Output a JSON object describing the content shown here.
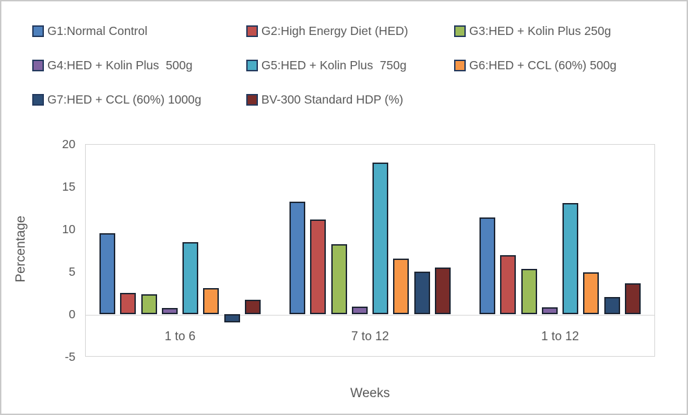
{
  "chart_data": {
    "type": "bar",
    "title": "",
    "xlabel": "Weeks",
    "ylabel": "Percentage",
    "categories": [
      "1 to 6",
      "7 to 12",
      "1 to 12"
    ],
    "series": [
      {
        "name": "G1:Normal Control",
        "color": "#4F81BD",
        "values": [
          9.5,
          13.2,
          11.4
        ]
      },
      {
        "name": "G2:High Energy Diet (HED)",
        "color": "#C0504D",
        "values": [
          2.5,
          11.1,
          6.9
        ]
      },
      {
        "name": "G3:HED + Kolin Plus 250g",
        "color": "#9BBB59",
        "values": [
          2.3,
          8.2,
          5.3
        ]
      },
      {
        "name": "G4:HED + Kolin Plus  500g",
        "color": "#8064A2",
        "values": [
          0.7,
          0.9,
          0.8
        ]
      },
      {
        "name": "G5:HED + Kolin Plus  750g",
        "color": "#4BACC6",
        "values": [
          8.5,
          17.8,
          13.1
        ]
      },
      {
        "name": "G6:HED + CCL (60%) 500g",
        "color": "#F79646",
        "values": [
          3.1,
          6.5,
          4.9
        ]
      },
      {
        "name": "G7:HED + CCL (60%) 1000g",
        "color": "#2C4D75",
        "values": [
          -1.0,
          5.0,
          2.0
        ]
      },
      {
        "name": "BV-300 Standard HDP (%)",
        "color": "#7A2D2A",
        "values": [
          1.7,
          5.5,
          3.6
        ]
      }
    ],
    "ylim": [
      -5,
      20
    ],
    "yticks": [
      20,
      15,
      10,
      5,
      0,
      -5
    ],
    "grid": "zero line and plot border only",
    "legend_position": "top"
  },
  "styles": {
    "text_color": "#595959",
    "grid_color": "#D6D6D6",
    "bar_border_color": "#1C2533",
    "legend_swatch_border_color": "#243A5E",
    "figure_border_color": "#C9C9C9",
    "background": "#FFFFFF"
  }
}
